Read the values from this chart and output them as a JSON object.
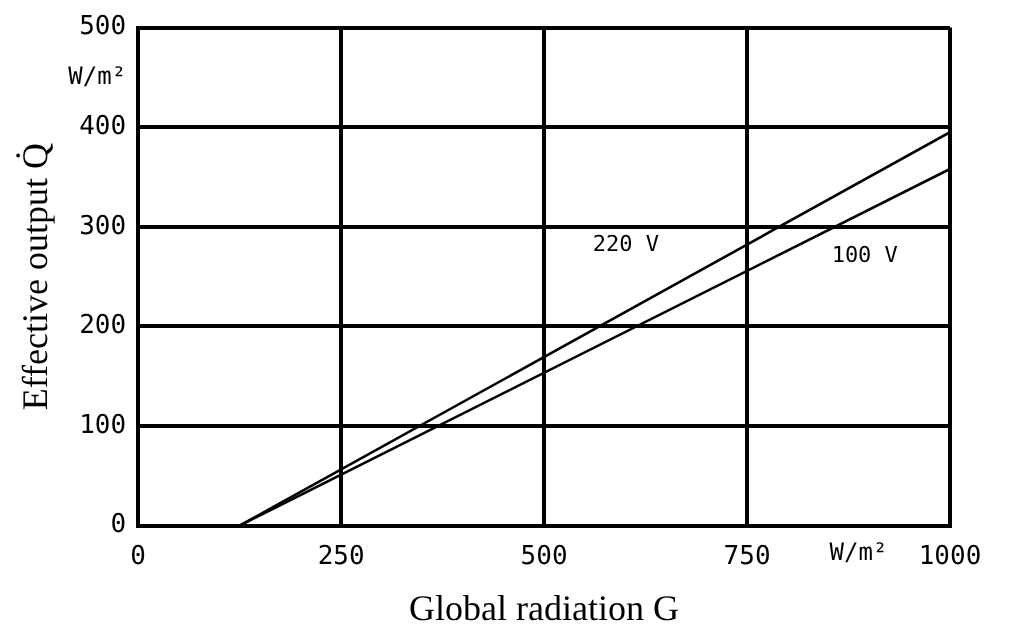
{
  "chart_data": {
    "type": "line",
    "xlabel": "Global radiation G",
    "ylabel": "Effective output Q̇",
    "x": [
      125,
      1000
    ],
    "series": [
      {
        "name": "220 V",
        "color": "#000000",
        "values": [
          0,
          395
        ]
      },
      {
        "name": "100 V",
        "color": "#000000",
        "values": [
          0,
          358
        ]
      }
    ],
    "xlim": [
      0,
      1000
    ],
    "xticks": [
      0,
      250,
      500,
      750,
      1000
    ],
    "ylim": [
      0,
      500
    ],
    "yticks": [
      0,
      100,
      200,
      300,
      400,
      500
    ],
    "annotations": [
      "W/m²",
      "W/m²"
    ],
    "grid": true,
    "legend": false,
    "marker": "none",
    "line_style": "solid"
  }
}
